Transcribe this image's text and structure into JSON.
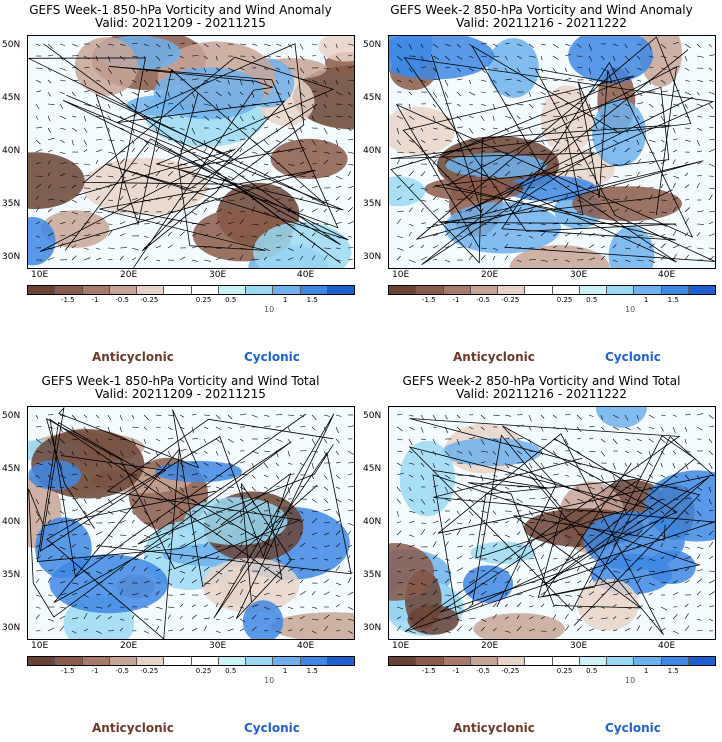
{
  "panels": [
    {
      "title1": "GEFS Week-1 850-hPa Vorticity and Wind Anomaly",
      "title2": "Valid: 20211209 - 20211215"
    },
    {
      "title1": "GEFS Week-2 850-hPa Vorticity and Wind Anomaly",
      "title2": "Valid: 20211216 - 20211222"
    },
    {
      "title1": "GEFS Week-1 850-hPa Vorticity and Wind Total",
      "title2": "Valid: 20211209 - 20211215"
    },
    {
      "title1": "GEFS Week-2 850-hPa Vorticity and Wind Total",
      "title2": "Valid: 20211216 - 20211222"
    }
  ],
  "axes": {
    "lat_labels": [
      "50N",
      "45N",
      "40N",
      "35N",
      "30N"
    ],
    "lon_labels": [
      "10E",
      "20E",
      "30E",
      "40E"
    ]
  },
  "colorbar": {
    "ticks": [
      "-1.5",
      "-1",
      "-0.5",
      "-0.25",
      "0.25",
      "0.5",
      "1",
      "1.5"
    ],
    "colors": [
      "#6b4335",
      "#8a5a4a",
      "#a9796a",
      "#c8a497",
      "#e8d3c8",
      "#ffffff",
      "#ffffff",
      "#c9f3f7",
      "#9bd9f2",
      "#6fb1ec",
      "#3e87e3",
      "#1f5fd0"
    ],
    "ref_label": "10"
  },
  "legend": {
    "anticyclonic": "Anticyclonic",
    "cyclonic": "Cyclonic"
  }
}
